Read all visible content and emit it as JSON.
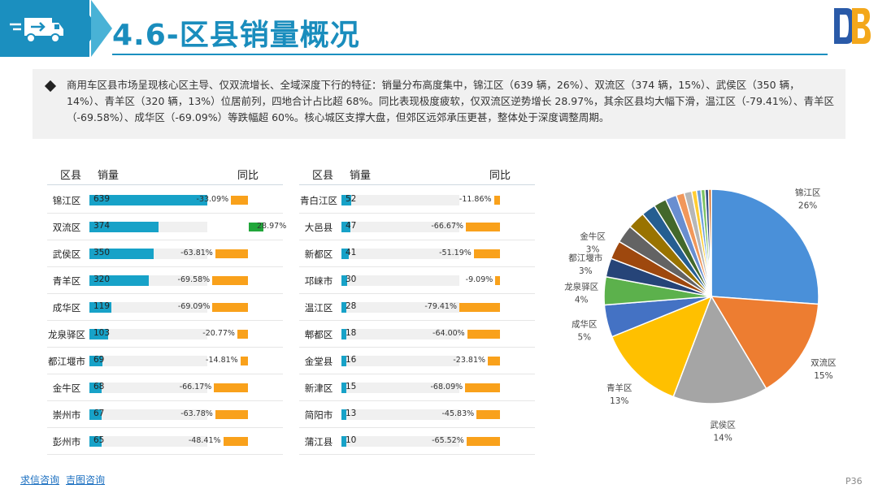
{
  "header": {
    "title": "4.6-区县销量概况",
    "logo_text": "DB"
  },
  "summary": "商用车区县市场呈现核心区主导、仅双流增长、全域深度下行的特征：销量分布高度集中，锦江区（639 辆，26%）、双流区（374 辆，15%）、武侯区（350 辆，14%）、青羊区（320 辆，13%）位居前列，四地合计占比超 68%。同比表现极度疲软，仅双流区逆势增长 28.97%，其余区县均大幅下滑，温江区（-79.41%）、青羊区（-69.58%）、成华区（-69.09%）等跌幅超 60%。核心城区支撑大盘，但郊区远郊承压更甚，整体处于深度调整周期。",
  "table_headers": {
    "district": "区县",
    "sales": "销量",
    "yoy": "同比"
  },
  "colors": {
    "sales_bar": "#17a2c8",
    "yoy_negative": "#f9a11b",
    "yoy_positive": "#21a63a"
  },
  "chart_data": [
    {
      "type": "bar",
      "categories": [
        "锦江区",
        "双流区",
        "武侯区",
        "青羊区",
        "成华区",
        "龙泉驿区",
        "都江堰市",
        "金牛区",
        "崇州市",
        "彭州市"
      ],
      "series": [
        {
          "name": "销量",
          "values": [
            639,
            374,
            350,
            320,
            119,
            103,
            69,
            68,
            67,
            65
          ]
        },
        {
          "name": "同比",
          "values": [
            -33.09,
            28.97,
            -63.81,
            -69.58,
            -69.09,
            -20.77,
            -14.81,
            -66.17,
            -63.78,
            -48.41
          ],
          "labels": [
            "-33.09%",
            "28.97%",
            "-63.81%",
            "-69.58%",
            "-69.09%",
            "-20.77%",
            "-14.81%",
            "-66.17%",
            "-63.78%",
            "-48.41%"
          ]
        }
      ]
    },
    {
      "type": "bar",
      "categories": [
        "青白江区",
        "大邑县",
        "新都区",
        "邛崃市",
        "温江区",
        "郫都区",
        "金堂县",
        "新津区",
        "简阳市",
        "蒲江县"
      ],
      "series": [
        {
          "name": "销量",
          "values": [
            52,
            47,
            41,
            30,
            28,
            18,
            16,
            15,
            13,
            10
          ]
        },
        {
          "name": "同比",
          "values": [
            -11.86,
            -66.67,
            -51.19,
            -9.09,
            -79.41,
            -64.0,
            -23.81,
            -68.09,
            -45.83,
            -65.52
          ],
          "labels": [
            "-11.86%",
            "-66.67%",
            "-51.19%",
            "-9.09%",
            "-79.41%",
            "-64.00%",
            "-23.81%",
            "-68.09%",
            "-45.83%",
            "-65.52%"
          ]
        }
      ]
    },
    {
      "type": "pie",
      "slices": [
        {
          "label": "锦江区",
          "pct_label": "26%",
          "value": 639,
          "color": "#4a90d9"
        },
        {
          "label": "双流区",
          "pct_label": "15%",
          "value": 374,
          "color": "#ed7d31"
        },
        {
          "label": "武侯区",
          "pct_label": "14%",
          "value": 350,
          "color": "#a5a5a5"
        },
        {
          "label": "青羊区",
          "pct_label": "13%",
          "value": 320,
          "color": "#ffc000"
        },
        {
          "label": "成华区",
          "pct_label": "5%",
          "value": 119,
          "color": "#4472c4"
        },
        {
          "label": "龙泉驿区",
          "pct_label": "4%",
          "value": 103,
          "color": "#5cb14c"
        },
        {
          "label": "都江堰市",
          "pct_label": "3%",
          "value": 69,
          "color": "#264478"
        },
        {
          "label": "金牛区",
          "pct_label": "3%",
          "value": 68,
          "color": "#9e480e"
        },
        {
          "value": 67,
          "color": "#636363"
        },
        {
          "value": 65,
          "color": "#997300"
        },
        {
          "value": 52,
          "color": "#255e91"
        },
        {
          "value": 47,
          "color": "#43682b"
        },
        {
          "value": 41,
          "color": "#698ed0"
        },
        {
          "value": 30,
          "color": "#f1975a"
        },
        {
          "value": 28,
          "color": "#b7b7b7"
        },
        {
          "value": 18,
          "color": "#ffcd33"
        },
        {
          "value": 16,
          "color": "#6fa0dc"
        },
        {
          "value": 15,
          "color": "#7cc262"
        },
        {
          "value": 13,
          "color": "#334d86"
        },
        {
          "value": 10,
          "color": "#d26012"
        }
      ]
    }
  ],
  "footer": {
    "link1": "求信咨询",
    "link2": "吉图咨询",
    "page": "P36"
  }
}
